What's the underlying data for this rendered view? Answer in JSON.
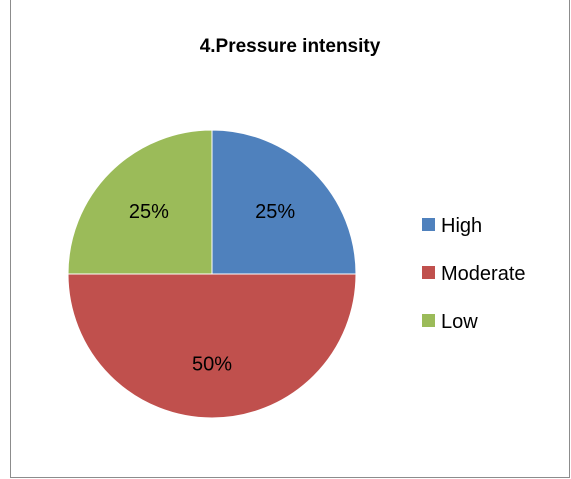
{
  "chart_data": {
    "type": "pie",
    "title": "4.Pressure intensity",
    "categories": [
      "High",
      "Moderate",
      "Low"
    ],
    "values": [
      25,
      50,
      25
    ],
    "labels": [
      "25%",
      "50%",
      "25%"
    ],
    "colors": [
      "#4f81bd",
      "#c0504d",
      "#9bbb59"
    ],
    "legend_position": "right"
  }
}
